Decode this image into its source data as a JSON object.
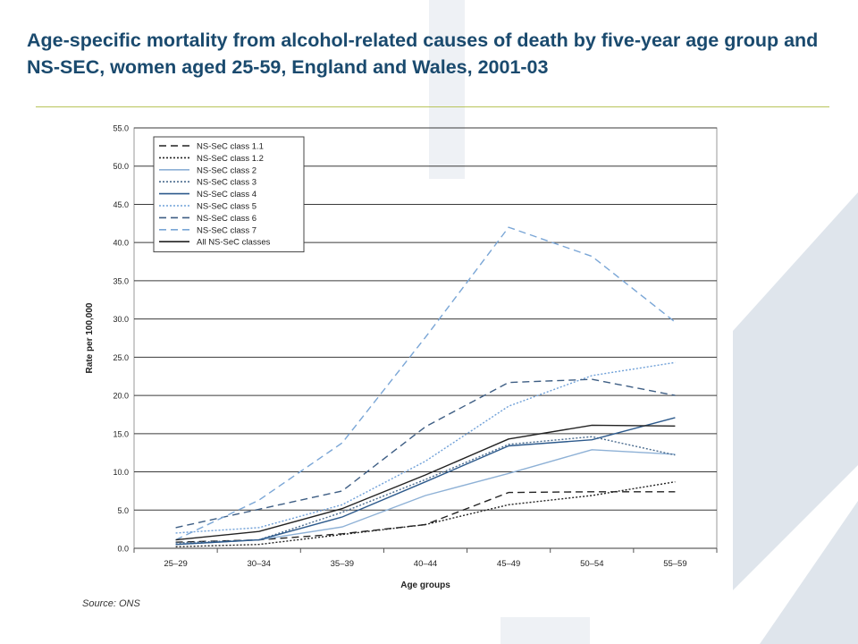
{
  "title": "Age-specific mortality from alcohol-related causes of death by five-year age group and NS-SEC, women aged 25-59, England and Wales, 2001-03",
  "source": "Source: ONS",
  "colors": {
    "title": "#1a4a6e",
    "rule": "#b8c45a",
    "decor": "#dfe5ec"
  },
  "chart_data": {
    "type": "line",
    "categories": [
      "25–29",
      "30–34",
      "35–39",
      "40–44",
      "45–49",
      "50–54",
      "55–59"
    ],
    "xlabel": "Age groups",
    "ylabel": "Rate per 100,000",
    "ylim": [
      0,
      55
    ],
    "yticks": [
      "0.0",
      "5.0",
      "10.0",
      "15.0",
      "20.0",
      "25.0",
      "30.0",
      "35.0",
      "40.0",
      "45.0",
      "50.0",
      "55.0"
    ],
    "grid": true,
    "legend_position": "top-left",
    "series": [
      {
        "name": "NS-SeC class 1.1",
        "color": "#222222",
        "dash": "dashed",
        "values": [
          0.8,
          1.1,
          1.9,
          3.1,
          7.3,
          7.4,
          7.4
        ]
      },
      {
        "name": "NS-SeC class 1.2",
        "color": "#222222",
        "dash": "dotted",
        "values": [
          0.2,
          0.5,
          1.8,
          3.1,
          5.7,
          6.9,
          8.7
        ]
      },
      {
        "name": "NS-SeC class 2",
        "color": "#8eb1d6",
        "dash": "solid",
        "values": [
          0.5,
          1.1,
          2.8,
          6.9,
          9.8,
          12.9,
          12.3
        ]
      },
      {
        "name": "NS-SeC class 3",
        "color": "#4a6b8e",
        "dash": "dotted",
        "values": [
          0.7,
          1.1,
          4.7,
          9.0,
          13.6,
          14.6,
          12.2
        ]
      },
      {
        "name": "NS-SeC class 4",
        "color": "#2d5a8c",
        "dash": "solid",
        "values": [
          0.5,
          1.1,
          4.1,
          8.7,
          13.4,
          14.2,
          17.1
        ]
      },
      {
        "name": "NS-SeC class 5",
        "color": "#6fa0d8",
        "dash": "dotted",
        "values": [
          2.0,
          2.7,
          5.7,
          11.4,
          18.6,
          22.6,
          24.3
        ]
      },
      {
        "name": "NS-SeC class 6",
        "color": "#3e5e84",
        "dash": "dashed",
        "values": [
          2.7,
          5.1,
          7.5,
          15.9,
          21.7,
          22.1,
          20.0
        ]
      },
      {
        "name": "NS-SeC class 7",
        "color": "#7aa6d6",
        "dash": "dashed",
        "values": [
          1.1,
          6.3,
          13.8,
          27.6,
          42.0,
          38.2,
          29.6
        ]
      },
      {
        "name": "All NS-SeC classes",
        "color": "#222222",
        "dash": "solid",
        "values": [
          1.1,
          2.2,
          5.2,
          9.6,
          14.3,
          16.1,
          16.0
        ]
      }
    ]
  }
}
